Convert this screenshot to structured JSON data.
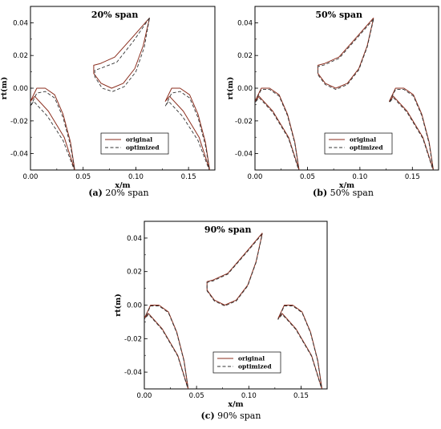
{
  "chart_data": [
    {
      "type": "line",
      "title": "20% span",
      "xlabel": "x/m",
      "ylabel": "rt(m)",
      "xlim": [
        0.0,
        0.175
      ],
      "ylim": [
        -0.05,
        0.05
      ],
      "xticks": [
        "0.00",
        "0.05",
        "0.10",
        "0.15"
      ],
      "yticks": [
        "-0.04",
        "-0.02",
        "0.00",
        "0.02",
        "0.04"
      ],
      "legend_position": "lower-right",
      "series": [
        {
          "name": "original",
          "color": "#8b2e1e",
          "dash": "solid"
        },
        {
          "name": "optimized",
          "color": "#333333",
          "dash": "dashed"
        }
      ],
      "caption_tag": "(a)",
      "caption_text": " 20% span",
      "variant": 0
    },
    {
      "type": "line",
      "title": "50% span",
      "xlabel": "x/m",
      "ylabel": "rt(m)",
      "xlim": [
        0.0,
        0.175
      ],
      "ylim": [
        -0.05,
        0.05
      ],
      "xticks": [
        "0.00",
        "0.05",
        "0.10",
        "0.15"
      ],
      "yticks": [
        "0.04",
        "0.02",
        "0.00",
        "-0.02",
        "-0.04"
      ],
      "legend_position": "lower-right",
      "series": [
        {
          "name": "original",
          "color": "#8b2e1e",
          "dash": "solid"
        },
        {
          "name": "optimized",
          "color": "#333333",
          "dash": "dashed"
        }
      ],
      "caption_tag": "(b)",
      "caption_text": " 50% span",
      "variant": 1
    },
    {
      "type": "line",
      "title": "90% span",
      "xlabel": "x/m",
      "ylabel": "rt(m)",
      "xlim": [
        0.0,
        0.175
      ],
      "ylim": [
        -0.05,
        0.05
      ],
      "xticks": [
        "0.00",
        "0.05",
        "0.10",
        "0.15"
      ],
      "yticks": [
        "0.04",
        "0.02",
        "0.00",
        "-0.02",
        "-0.04"
      ],
      "legend_position": "lower-right",
      "series": [
        {
          "name": "original",
          "color": "#8b2e1e",
          "dash": "solid"
        },
        {
          "name": "optimized",
          "color": "#333333",
          "dash": "dashed"
        }
      ],
      "caption_tag": "(c)",
      "caption_text": " 90% span",
      "variant": 2
    }
  ]
}
